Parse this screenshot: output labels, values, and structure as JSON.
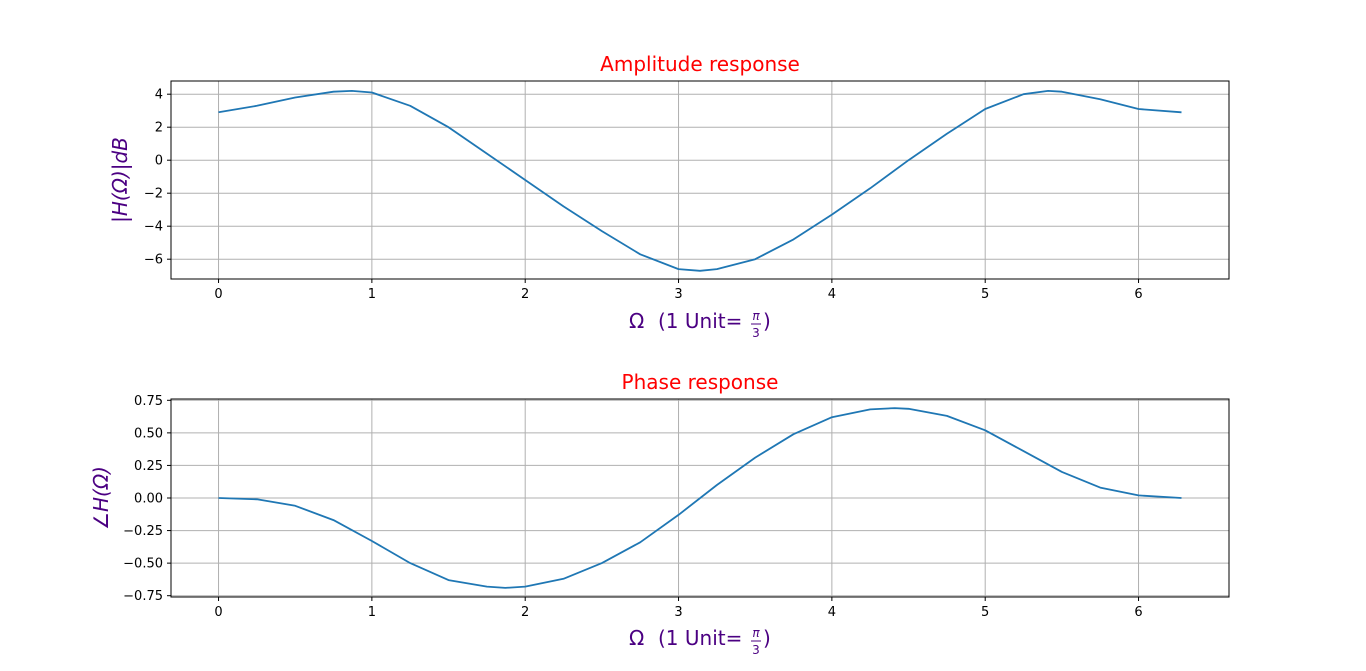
{
  "colors": {
    "background": "#ffffff",
    "line": "#1f77b4",
    "title": "#ff0000",
    "label": "#4b0082",
    "grid": "#b0b0b0",
    "frame": "#000000"
  },
  "chart_data": [
    {
      "type": "line",
      "title": "Amplitude response",
      "xlabel": {
        "omega": "Ω",
        "unit_text": "(1 Unit=",
        "pi": "π",
        "den": "3",
        "close": ")"
      },
      "ylabel": "|H(Ω)|dB",
      "grid": true,
      "xlim": [
        -0.31,
        6.59
      ],
      "ylim": [
        -7.2,
        4.8
      ],
      "xticks": [
        0,
        1,
        2,
        3,
        4,
        5,
        6
      ],
      "yticks": [
        4,
        2,
        0,
        -2,
        -4,
        -6
      ],
      "ytick_labels": [
        "4",
        "2",
        "0",
        "−2",
        "−4",
        "−6"
      ],
      "series": [
        {
          "x": [
            0,
            0.25,
            0.5,
            0.75,
            0.87,
            1.0,
            1.25,
            1.5,
            1.75,
            2.0,
            2.25,
            2.5,
            2.75,
            3.0,
            3.14,
            3.25,
            3.5,
            3.75,
            4.0,
            4.25,
            4.5,
            4.75,
            5.0,
            5.25,
            5.41,
            5.5,
            5.75,
            6.0,
            6.28
          ],
          "values": [
            2.9,
            3.3,
            3.8,
            4.15,
            4.2,
            4.1,
            3.3,
            2.0,
            0.4,
            -1.2,
            -2.8,
            -4.3,
            -5.7,
            -6.6,
            -6.7,
            -6.6,
            -6.0,
            -4.8,
            -3.3,
            -1.7,
            0.0,
            1.6,
            3.1,
            4.0,
            4.2,
            4.15,
            3.7,
            3.1,
            2.9
          ]
        }
      ]
    },
    {
      "type": "line",
      "title": "Phase response",
      "xlabel": {
        "omega": "Ω",
        "unit_text": "(1 Unit=",
        "pi": "π",
        "den": "3",
        "close": ")"
      },
      "ylabel": "∠H(Ω)",
      "grid": true,
      "xlim": [
        -0.31,
        6.59
      ],
      "ylim": [
        -0.76,
        0.76
      ],
      "xticks": [
        0,
        1,
        2,
        3,
        4,
        5,
        6
      ],
      "yticks": [
        0.75,
        0.5,
        0.25,
        0,
        -0.25,
        -0.5,
        -0.75
      ],
      "ytick_labels": [
        "0.75",
        "0.50",
        "0.25",
        "0.00",
        "−0.25",
        "−0.50",
        "−0.75"
      ],
      "series": [
        {
          "x": [
            0,
            0.25,
            0.5,
            0.75,
            1.0,
            1.25,
            1.5,
            1.75,
            1.87,
            2.0,
            2.25,
            2.5,
            2.75,
            3.0,
            3.25,
            3.5,
            3.75,
            4.0,
            4.25,
            4.41,
            4.5,
            4.75,
            5.0,
            5.25,
            5.5,
            5.75,
            6.0,
            6.28
          ],
          "values": [
            0,
            -0.01,
            -0.06,
            -0.17,
            -0.33,
            -0.5,
            -0.63,
            -0.68,
            -0.69,
            -0.68,
            -0.62,
            -0.5,
            -0.34,
            -0.13,
            0.1,
            0.31,
            0.49,
            0.62,
            0.68,
            0.69,
            0.685,
            0.63,
            0.52,
            0.36,
            0.2,
            0.08,
            0.02,
            0
          ]
        }
      ]
    }
  ]
}
